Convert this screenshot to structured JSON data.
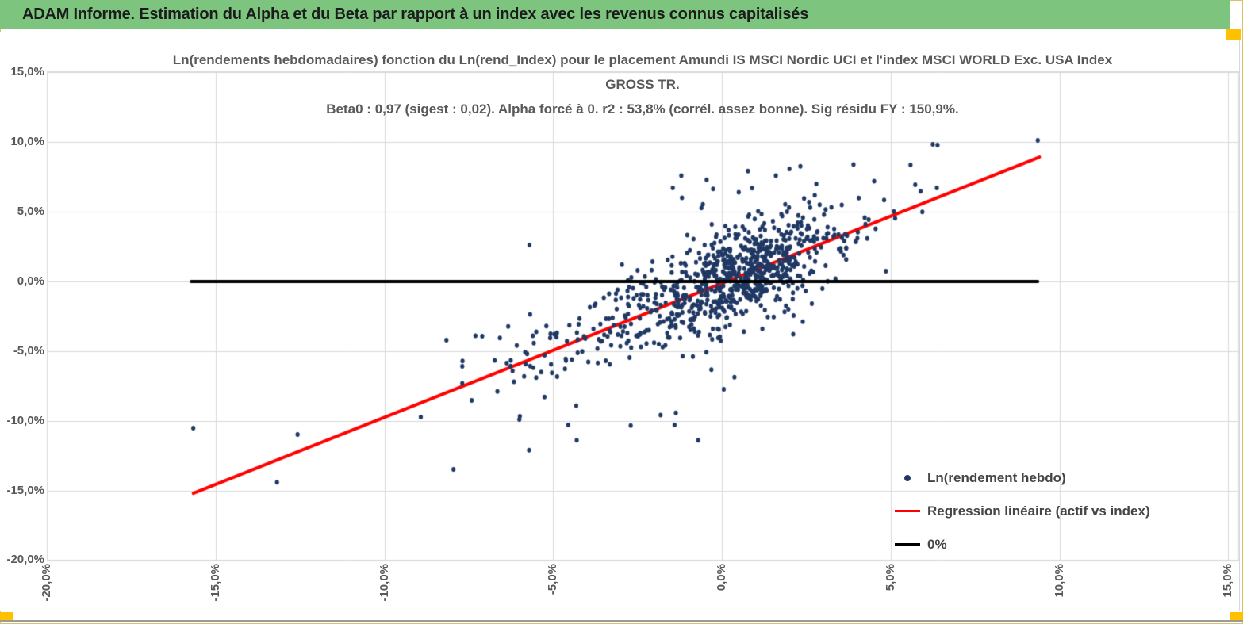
{
  "header": {
    "title": "ADAM Informe. Estimation du Alpha et du Beta par rapport à un index avec les revenus connus capitalisés"
  },
  "chart_data": {
    "type": "scatter",
    "title_lines": [
      "Ln(rendements hebdomadaires) fonction du Ln(rend_Index) pour le placement Amundi IS MSCI Nordic UCI et l'index MSCI WORLD Exc. USA Index",
      "GROSS TR.",
      "Beta0 : 0,97  (sigest : 0,02).  Alpha forcé à 0. r2 : 53,8% (corrél. assez bonne). Sig résidu FY : 150,9%."
    ],
    "stats": {
      "beta0": "0,97",
      "sigest": "0,02",
      "alpha": "forcé à 0",
      "r2": "53,8%",
      "correlation_note": "corrél. assez bonne",
      "sig_residu_fy": "150,9%"
    },
    "grid": true,
    "x_axis": {
      "values": [
        -20,
        -15,
        -10,
        -5,
        0,
        5,
        10,
        15
      ],
      "labels": [
        "-20,0%",
        "-15,0%",
        "-10,0%",
        "-5,0%",
        "0,0%",
        "5,0%",
        "10,0%",
        "15,0%"
      ],
      "range": [
        -20,
        15.3
      ]
    },
    "y_axis": {
      "values": [
        15,
        10,
        5,
        0,
        -5,
        -10,
        -15,
        -20
      ],
      "labels": [
        "15,0%",
        "10,0%",
        "5,0%",
        "0,0%",
        "-5,0%",
        "-10,0%",
        "-15,0%",
        "-20,0%"
      ],
      "range": [
        -20.6,
        15.1
      ]
    },
    "legend": {
      "position": "inside-bottom-right",
      "items": [
        {
          "label": "Ln(rendement hebdo)",
          "marker": "dot",
          "color": "#1f3864"
        },
        {
          "label": "Regression linéaire (actif vs index)",
          "marker": "line",
          "color": "#ff0000"
        },
        {
          "label": "0%",
          "marker": "line",
          "color": "#000000"
        }
      ]
    },
    "series": [
      {
        "name": "Ln(rendement hebdo)",
        "type": "scatter",
        "color": "#1f3864",
        "point_radius": [
          2.6,
          3.0
        ],
        "cloud_model": {
          "comment": "approx. 900-point weekly-return cloud, y ≈ 0.97x + residual",
          "n": 860,
          "seed": 20240611,
          "slope": 0.97,
          "components": [
            {
              "w": 0.72,
              "mu": 0.7,
              "sd": 1.35
            },
            {
              "w": 0.2,
              "mu": -0.9,
              "sd": 2.6
            },
            {
              "w": 0.08,
              "mu": -3.6,
              "sd": 2.1
            }
          ],
          "residual": {
            "sd_main": 1.5,
            "sd_tail": 3.3,
            "tail_p": 0.13
          },
          "x_clip": [
            -9.8,
            7.2
          ],
          "y_clip": [
            -12.6,
            7.8
          ]
        },
        "outlier_points": [
          [
            -15.66,
            -10.53
          ],
          [
            -13.18,
            -14.42
          ],
          [
            -12.57,
            -10.98
          ],
          [
            -8.92,
            -9.73
          ],
          [
            -7.95,
            -13.49
          ],
          [
            -8.16,
            -4.21
          ],
          [
            -7.69,
            -6.09
          ],
          [
            -7.3,
            -3.9
          ],
          [
            -7.1,
            -3.93
          ],
          [
            -6.65,
            -7.9
          ],
          [
            -6.2,
            -6.42
          ],
          [
            -6.16,
            -7.2
          ],
          [
            -6.0,
            -9.9
          ],
          [
            -5.6,
            -3.9
          ],
          [
            -5.57,
            -4.43
          ],
          [
            -5.5,
            -6.9
          ],
          [
            -5.7,
            2.62
          ],
          [
            -4.55,
            -10.3
          ],
          [
            -4.3,
            -11.4
          ],
          [
            -2.7,
            -10.35
          ],
          [
            -1.4,
            -10.3
          ],
          [
            -0.7,
            -11.4
          ],
          [
            -0.45,
            7.3
          ],
          [
            -0.26,
            6.65
          ],
          [
            -1.2,
            7.6
          ],
          [
            1.6,
            7.6
          ],
          [
            0.5,
            6.4
          ],
          [
            2.8,
            7.0
          ],
          [
            3.9,
            8.4
          ],
          [
            5.59,
            8.37
          ],
          [
            5.73,
            6.94
          ],
          [
            5.94,
            5.0
          ],
          [
            6.37,
            6.72
          ],
          [
            6.25,
            9.84
          ],
          [
            6.39,
            9.79
          ],
          [
            9.36,
            10.13
          ]
        ]
      },
      {
        "name": "Regression linéaire (actif vs index)",
        "type": "line",
        "color": "#ff0000",
        "width": 4,
        "points": [
          [
            -15.66,
            -15.2
          ],
          [
            9.41,
            8.93
          ]
        ]
      },
      {
        "name": "0%",
        "type": "line",
        "color": "#000000",
        "width": 4,
        "points": [
          [
            -15.72,
            0
          ],
          [
            9.36,
            0
          ]
        ]
      }
    ]
  },
  "colors": {
    "header_bg": "#7dc57e",
    "header_text": "#1c1c1c",
    "title_text": "#595959",
    "tick_text": "#595959",
    "legend_text": "#454545",
    "gridline": "#d9d9d9",
    "plot_border": "#d9d9d9",
    "scatter": "#1f3864",
    "regression": "#ff0000",
    "zero_line": "#000000",
    "selection_handle": "#ffc000"
  }
}
